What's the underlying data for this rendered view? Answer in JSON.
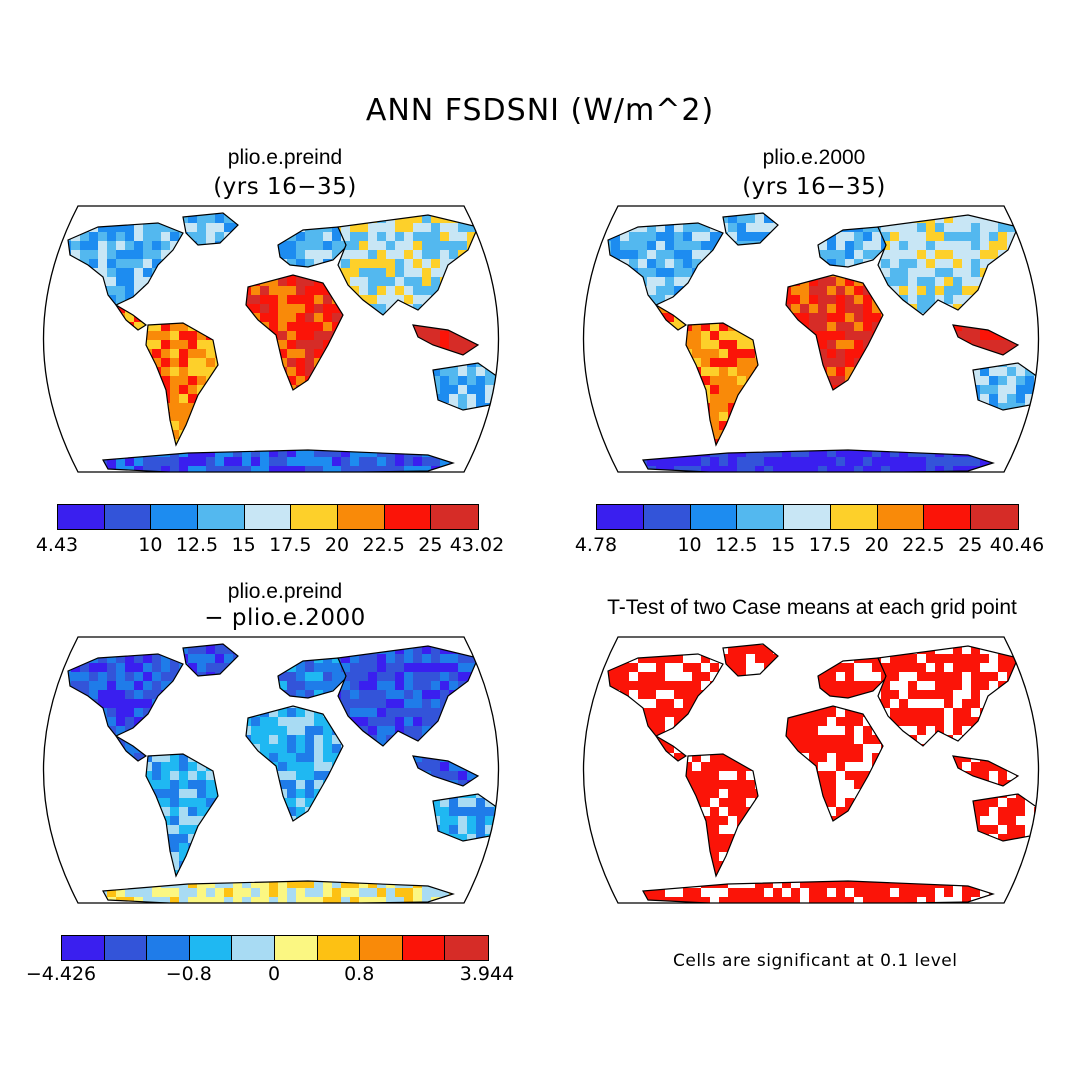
{
  "figure": {
    "title": "ANN FSDSNI (W/m^2)",
    "note": "Cells are significant at 0.1 level"
  },
  "panels": [
    {
      "id": "preind",
      "title": "plio.e.preind",
      "subtitle": "(yrs 16−35)",
      "colorbar": {
        "colors": [
          "#3a1fef",
          "#3354d9",
          "#1d8cf0",
          "#53b8ef",
          "#c8e6f5",
          "#fdd02a",
          "#f98a09",
          "#fb1408",
          "#d62c27"
        ],
        "labels": [
          "4.43",
          "",
          "10",
          "12.5",
          "15",
          "17.5",
          "20",
          "22.5",
          "25",
          "43.02"
        ]
      }
    },
    {
      "id": "y2000",
      "title": "plio.e.2000",
      "subtitle": "(yrs 16−35)",
      "colorbar": {
        "colors": [
          "#3a1fef",
          "#3354d9",
          "#1d8cf0",
          "#53b8ef",
          "#c8e6f5",
          "#fdd02a",
          "#f98a09",
          "#fb1408",
          "#d62c27"
        ],
        "labels": [
          "4.78",
          "",
          "10",
          "12.5",
          "15",
          "17.5",
          "20",
          "22.5",
          "25",
          "40.46"
        ]
      }
    },
    {
      "id": "diff",
      "title": "plio.e.preind",
      "subtitle": "− plio.e.2000",
      "colorbar": {
        "colors": [
          "#3a1fef",
          "#3354d9",
          "#1f7ce9",
          "#1fb8f2",
          "#a8dbf3",
          "#fbf782",
          "#fdc113",
          "#f98a09",
          "#fb1408",
          "#d62c27"
        ],
        "labels": [
          "−4.426",
          "",
          "",
          "−0.8",
          "",
          "0",
          "",
          "0.8",
          "",
          "",
          "3.944"
        ]
      }
    },
    {
      "id": "ttest",
      "title": "T-Test of two Case means at each grid point",
      "subtitle": "",
      "significant_color": "#fb1408"
    }
  ]
}
